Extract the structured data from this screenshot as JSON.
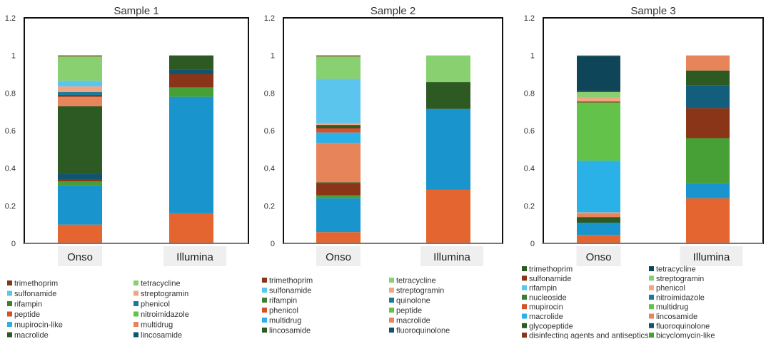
{
  "chart_data": [
    {
      "type": "bar",
      "stacked": true,
      "title": "Sample 1",
      "ylim": [
        0,
        1.2
      ],
      "yticks": [
        "0",
        "0.2",
        "0.4",
        "0.6",
        "0.8",
        "1",
        "1.2"
      ],
      "grid": false,
      "categories": [
        "Onso",
        "Illumina"
      ],
      "bars": [
        {
          "segments": [
            {
              "value": 0.1,
              "color": "#E4652F"
            },
            {
              "value": 0.21,
              "color": "#1A94CC"
            },
            {
              "value": 0.02,
              "color": "#47A036"
            },
            {
              "value": 0.01,
              "color": "#8B3518"
            },
            {
              "value": 0.03,
              "color": "#0F5570"
            },
            {
              "value": 0.36,
              "color": "#2C5A22"
            },
            {
              "value": 0.05,
              "color": "#E8845A"
            },
            {
              "value": 0.01,
              "color": "#8B3518"
            },
            {
              "value": 0.015,
              "color": "#1A7A9A"
            },
            {
              "value": 0.03,
              "color": "#F0A585"
            },
            {
              "value": 0.03,
              "color": "#5BC5EE"
            },
            {
              "value": 0.13,
              "color": "#88D070"
            },
            {
              "value": 0.005,
              "color": "#8B3518"
            }
          ]
        },
        {
          "segments": [
            {
              "value": 0.16,
              "color": "#E4652F"
            },
            {
              "value": 0.62,
              "color": "#1A94CC"
            },
            {
              "value": 0.05,
              "color": "#47A036"
            },
            {
              "value": 0.07,
              "color": "#8B3518"
            },
            {
              "value": 0.025,
              "color": "#0F5570"
            },
            {
              "value": 0.075,
              "color": "#2C5A22"
            }
          ]
        }
      ],
      "legend": {
        "placement": "bottom",
        "items": [
          {
            "label": "trimethoprim",
            "color": "#8B3518"
          },
          {
            "label": "sulfonamide",
            "color": "#5BC5EE"
          },
          {
            "label": "rifampin",
            "color": "#3F7E2E"
          },
          {
            "label": "peptide",
            "color": "#D4522A"
          },
          {
            "label": "mupirocin-like",
            "color": "#2AB2E8"
          },
          {
            "label": "macrolide",
            "color": "#2C5A22"
          },
          {
            "label": "tetracycline",
            "color": "#88D070"
          },
          {
            "label": "streptogramin",
            "color": "#F0A585"
          },
          {
            "label": "phenicol",
            "color": "#1A7A9A"
          },
          {
            "label": "nitroimidazole",
            "color": "#62C24A"
          },
          {
            "label": "multidrug",
            "color": "#E8845A"
          },
          {
            "label": "lincosamide",
            "color": "#0F5570"
          }
        ]
      }
    },
    {
      "type": "bar",
      "stacked": true,
      "title": "Sample 2",
      "ylim": [
        0,
        1.2
      ],
      "yticks": [
        "0",
        "0.2",
        "0.4",
        "0.6",
        "0.8",
        "1",
        "1.2"
      ],
      "grid": false,
      "categories": [
        "Onso",
        "Illumina"
      ],
      "bars": [
        {
          "segments": [
            {
              "value": 0.06,
              "color": "#E4652F"
            },
            {
              "value": 0.18,
              "color": "#1A94CC"
            },
            {
              "value": 0.015,
              "color": "#47A036"
            },
            {
              "value": 0.065,
              "color": "#8B3518"
            },
            {
              "value": 0.005,
              "color": "#2C5A22"
            },
            {
              "value": 0.21,
              "color": "#E8845A"
            },
            {
              "value": 0.055,
              "color": "#2AB2E8"
            },
            {
              "value": 0.02,
              "color": "#D4522A"
            },
            {
              "value": 0.005,
              "color": "#8B3518"
            },
            {
              "value": 0.015,
              "color": "#2C5A22"
            },
            {
              "value": 0.01,
              "color": "#F0A585"
            },
            {
              "value": 0.235,
              "color": "#5BC5EE"
            },
            {
              "value": 0.12,
              "color": "#88D070"
            },
            {
              "value": 0.005,
              "color": "#8B3518"
            }
          ]
        },
        {
          "segments": [
            {
              "value": 0.285,
              "color": "#E4652F"
            },
            {
              "value": 0.43,
              "color": "#1A94CC"
            },
            {
              "value": 0.143,
              "color": "#2C5A22"
            },
            {
              "value": 0.142,
              "color": "#88D070"
            }
          ]
        }
      ],
      "legend": {
        "placement": "bottom",
        "items": [
          {
            "label": "trimethoprim",
            "color": "#8B3518"
          },
          {
            "label": "sulfonamide",
            "color": "#5BC5EE"
          },
          {
            "label": "rifampin",
            "color": "#3F7E2E"
          },
          {
            "label": "phenicol",
            "color": "#D4522A"
          },
          {
            "label": "multidrug",
            "color": "#2AB2E8"
          },
          {
            "label": "lincosamide",
            "color": "#2C5A22"
          },
          {
            "label": "tetracycline",
            "color": "#88D070"
          },
          {
            "label": "streptogramin",
            "color": "#F0A585"
          },
          {
            "label": "quinolone",
            "color": "#1A7A9A"
          },
          {
            "label": "peptide",
            "color": "#62C24A"
          },
          {
            "label": "macrolide",
            "color": "#E8845A"
          },
          {
            "label": "fluoroquinolone",
            "color": "#0F5570"
          }
        ]
      }
    },
    {
      "type": "bar",
      "stacked": true,
      "title": "Sample 3",
      "ylim": [
        0,
        1.2
      ],
      "yticks": [
        "0",
        "0.2",
        "0.4",
        "0.6",
        "0.8",
        "1",
        "1.2"
      ],
      "grid": false,
      "categories": [
        "Onso",
        "Illumina"
      ],
      "bars": [
        {
          "segments": [
            {
              "value": 0.045,
              "color": "#E4652F"
            },
            {
              "value": 0.065,
              "color": "#1A94CC"
            },
            {
              "value": 0.03,
              "color": "#2C5A22"
            },
            {
              "value": 0.02,
              "color": "#E8845A"
            },
            {
              "value": 0.005,
              "color": "#F0A585"
            },
            {
              "value": 0.275,
              "color": "#2AB2E8"
            },
            {
              "value": 0.31,
              "color": "#62C24A"
            },
            {
              "value": 0.005,
              "color": "#8B3518"
            },
            {
              "value": 0.02,
              "color": "#F0A585"
            },
            {
              "value": 0.03,
              "color": "#88D070"
            },
            {
              "value": 0.005,
              "color": "#8B3518"
            },
            {
              "value": 0.188,
              "color": "#0F4558"
            },
            {
              "value": 0.002,
              "color": "#46A035"
            }
          ]
        },
        {
          "segments": [
            {
              "value": 0.24,
              "color": "#E4652F"
            },
            {
              "value": 0.08,
              "color": "#1A94CC"
            },
            {
              "value": 0.24,
              "color": "#46A035"
            },
            {
              "value": 0.16,
              "color": "#8B3518"
            },
            {
              "value": 0.12,
              "color": "#135D7D"
            },
            {
              "value": 0.08,
              "color": "#2C5A22"
            },
            {
              "value": 0.08,
              "color": "#E8845A"
            }
          ]
        }
      ],
      "legend": {
        "placement": "bottom",
        "items": [
          {
            "label": "trimethoprim",
            "color": "#2C5A22"
          },
          {
            "label": "sulfonamide",
            "color": "#8B3518"
          },
          {
            "label": "rifampin",
            "color": "#5BC5EE"
          },
          {
            "label": "nucleoside",
            "color": "#3F7E2E"
          },
          {
            "label": "mupirocin",
            "color": "#D4522A"
          },
          {
            "label": "macrolide",
            "color": "#2AB2E8"
          },
          {
            "label": "glycopeptide",
            "color": "#2C5A22"
          },
          {
            "label": "disinfecting agents and antiseptics",
            "color": "#8B3518"
          },
          {
            "label": "tetracycline",
            "color": "#0F4558"
          },
          {
            "label": "streptogramin",
            "color": "#88D070"
          },
          {
            "label": "phenicol",
            "color": "#F0A585"
          },
          {
            "label": "nitroimidazole",
            "color": "#1A7A9A"
          },
          {
            "label": "multidrug",
            "color": "#62C24A"
          },
          {
            "label": "lincosamide",
            "color": "#E8845A"
          },
          {
            "label": "fluoroquinolone",
            "color": "#0F5570"
          },
          {
            "label": "bicyclomycin-like",
            "color": "#46A035"
          }
        ]
      }
    }
  ]
}
